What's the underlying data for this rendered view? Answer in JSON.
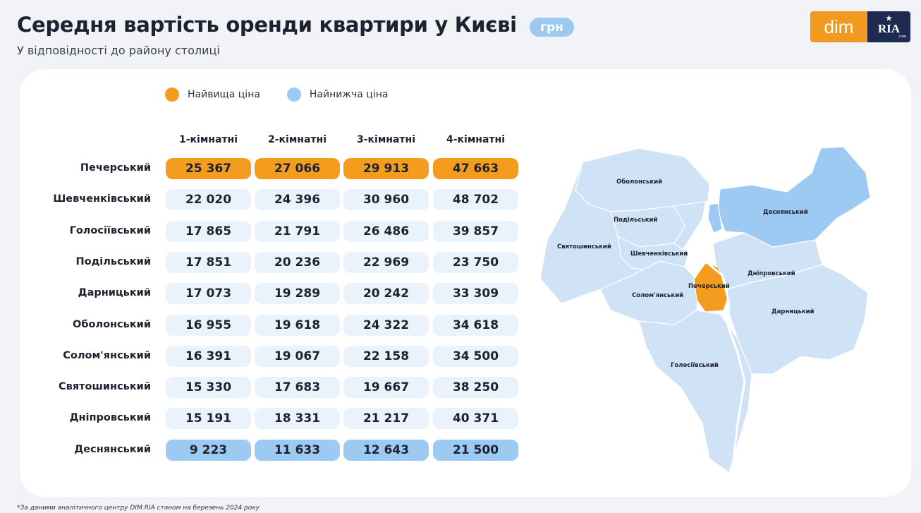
{
  "title": "Середня вартість оренди квартири у Києві",
  "unit_badge": "грн",
  "subtitle": "У відповідності до району столиці",
  "logo": {
    "left": "dim",
    "right": "RIA",
    "right_small": ".com"
  },
  "legend": [
    {
      "label": "Найвища ціна",
      "color": "#f39c1e"
    },
    {
      "label": "Найнижча ціна",
      "color": "#9ccaf2"
    }
  ],
  "chart_data": {
    "type": "table",
    "title": "Середня вартість оренди квартири у Києві",
    "unit": "грн",
    "columns": [
      "1-кімнатні",
      "2-кімнатні",
      "3-кімнатні",
      "4-кімнатні"
    ],
    "rows": [
      {
        "district": "Печерський",
        "values": [
          "25 367",
          "27 066",
          "29 913",
          "47 663"
        ],
        "highlight": "high"
      },
      {
        "district": "Шевченківський",
        "values": [
          "22 020",
          "24 396",
          "30 960",
          "48 702"
        ],
        "highlight": ""
      },
      {
        "district": "Голосіївський",
        "values": [
          "17 865",
          "21 791",
          "26 486",
          "39 857"
        ],
        "highlight": ""
      },
      {
        "district": "Подільський",
        "values": [
          "17 851",
          "20 236",
          "22 969",
          "23 750"
        ],
        "highlight": ""
      },
      {
        "district": "Дарницький",
        "values": [
          "17 073",
          "19 289",
          "20 242",
          "33 309"
        ],
        "highlight": ""
      },
      {
        "district": "Оболонський",
        "values": [
          "16 955",
          "19 618",
          "24 322",
          "34 618"
        ],
        "highlight": ""
      },
      {
        "district": "Солом'янський",
        "values": [
          "16 391",
          "19 067",
          "22 158",
          "34 500"
        ],
        "highlight": ""
      },
      {
        "district": "Святошинський",
        "values": [
          "15 330",
          "17 683",
          "19 667",
          "38 250"
        ],
        "highlight": ""
      },
      {
        "district": "Дніпровський",
        "values": [
          "15 191",
          "18 331",
          "21 217",
          "40 371"
        ],
        "highlight": ""
      },
      {
        "district": "Деснянський",
        "values": [
          "9 223",
          "11 633",
          "12 643",
          "21 500"
        ],
        "highlight": "low"
      }
    ]
  },
  "map": {
    "labels": {
      "obolonskyi": "Оболонський",
      "desnianskyi": "Деснянський",
      "podilskyi": "Подільський",
      "sviatoshynskyi": "Святошинський",
      "shevchenkivskyi": "Шевченківський",
      "dniprovskyi": "Дніпровський",
      "pecherskyi": "Печерський",
      "solomianskyi": "Солом'янський",
      "darnytskyi": "Дарницький",
      "holosiivskyi": "Голосіївський"
    },
    "colors": {
      "default": "#cfe2f6",
      "high": "#f39c1e",
      "low": "#9ccaf2"
    }
  },
  "footnote": "*За даними аналітичного центру DIM.RIA станом на березень 2024 року"
}
